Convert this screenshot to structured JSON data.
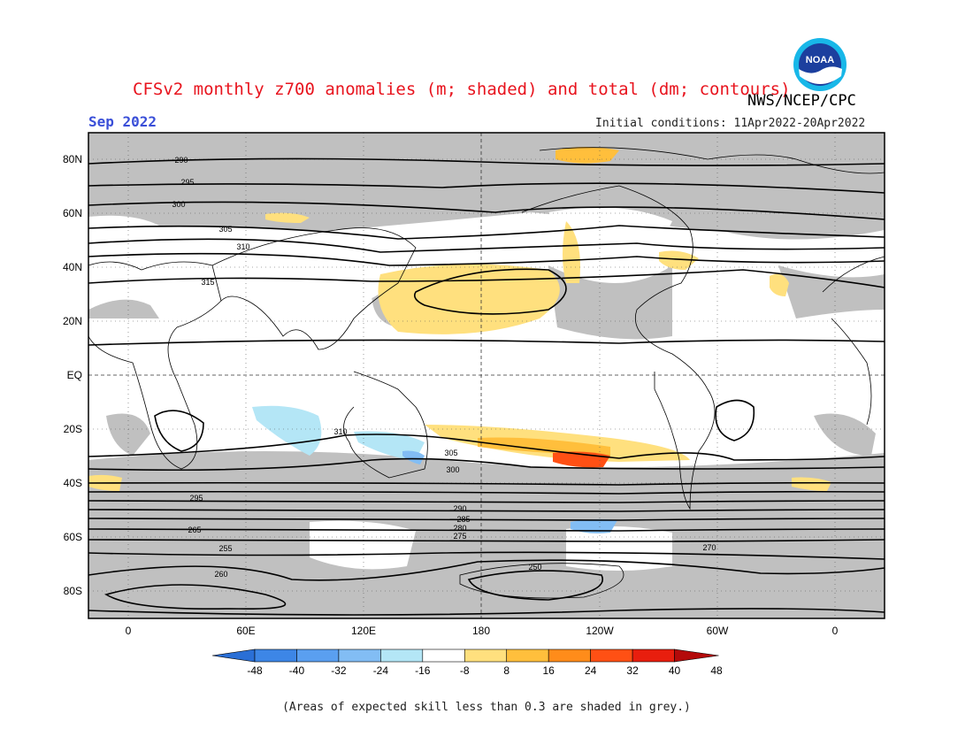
{
  "title": "CFSv2 monthly z700 anomalies (m; shaded) and total (dm; contours)",
  "organization": "NWS/NCEP/CPC",
  "logo": {
    "icon": "noaa-logo",
    "text": "NOAA"
  },
  "valid_period": "Sep 2022",
  "initial_conditions": "Initial conditions: 11Apr2022-20Apr2022",
  "footnote": "(Areas of expected skill less than 0.3 are shaded in grey.)",
  "map": {
    "lat_labels": [
      "80N",
      "60N",
      "40N",
      "20N",
      "EQ",
      "20S",
      "40S",
      "60S",
      "80S"
    ],
    "lon_labels": [
      "0",
      "60E",
      "120E",
      "180",
      "120W",
      "60W",
      "0"
    ],
    "contour_labels": [
      "290",
      "295",
      "300",
      "305",
      "310",
      "315",
      "310",
      "305",
      "300",
      "295",
      "290",
      "285",
      "280",
      "275",
      "270",
      "265",
      "260",
      "255",
      "250"
    ],
    "colors": {
      "land_outline": "#000000",
      "skill_grey": "#c0c0c0",
      "frame": "#000000"
    }
  },
  "colorbar": {
    "ticks": [
      "-48",
      "-40",
      "-32",
      "-24",
      "-16",
      "-8",
      "8",
      "16",
      "24",
      "32",
      "40",
      "48"
    ],
    "colors": [
      "#2a6fd6",
      "#3d86e6",
      "#5a9ff0",
      "#82bdf4",
      "#b4e6f6",
      "#ffffff",
      "#ffe07e",
      "#ffbf3c",
      "#ff8c1a",
      "#ff5014",
      "#e81e0e",
      "#b40a0a"
    ]
  }
}
